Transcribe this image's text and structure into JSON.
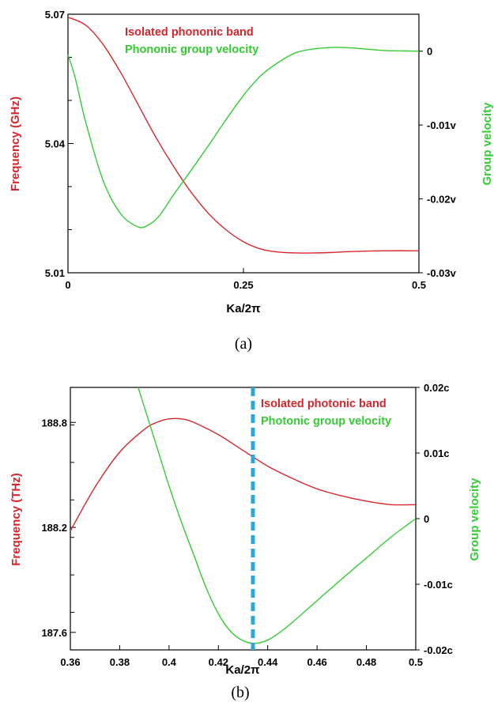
{
  "colors": {
    "red": "#d7262b",
    "green": "#33cc33",
    "marker": "#29a8e0",
    "axis": "#000000"
  },
  "chart_data": [
    {
      "type": "line",
      "caption": "(a)",
      "xlabel": "Ka/2π",
      "ylabel": "Frequency (GHz)",
      "y2label": "Group velocity",
      "xlim": [
        0,
        0.5
      ],
      "ylim": [
        5.01,
        5.07
      ],
      "y2lim": [
        -0.03,
        0.005
      ],
      "xticks": [
        0,
        0.25,
        0.5
      ],
      "xtick_labels": [
        "0",
        "0.25",
        "0.5"
      ],
      "yticks": [
        5.01,
        5.04,
        5.07
      ],
      "ytick_labels": [
        "5.01",
        "5.04",
        "5.07"
      ],
      "y2ticks": [
        0,
        -0.01,
        -0.02,
        -0.03
      ],
      "y2tick_labels": [
        "0",
        "-0.01v",
        "-0.02v",
        "-0.03v"
      ],
      "series": [
        {
          "name": "Isolated phononic band",
          "axis": "left",
          "color": "#d7262b",
          "x": [
            0,
            0.025,
            0.05,
            0.075,
            0.1,
            0.125,
            0.15,
            0.175,
            0.2,
            0.225,
            0.25,
            0.275,
            0.3,
            0.325,
            0.35,
            0.375,
            0.4,
            0.45,
            0.5
          ],
          "y": [
            5.0693,
            5.0675,
            5.063,
            5.0565,
            5.049,
            5.0415,
            5.0348,
            5.0288,
            5.0238,
            5.02,
            5.0172,
            5.0155,
            5.0148,
            5.0146,
            5.0146,
            5.0147,
            5.0149,
            5.0151,
            5.0151
          ]
        },
        {
          "name": "Phononic group velocity",
          "axis": "right",
          "color": "#33cc33",
          "x": [
            0,
            0.01,
            0.025,
            0.05,
            0.075,
            0.1,
            0.115,
            0.13,
            0.15,
            0.175,
            0.2,
            0.225,
            0.25,
            0.275,
            0.3,
            0.325,
            0.35,
            0.375,
            0.39,
            0.41,
            0.45,
            0.5
          ],
          "y": [
            -0.0005,
            -0.0035,
            -0.0095,
            -0.0175,
            -0.022,
            -0.0238,
            -0.0235,
            -0.0223,
            -0.0195,
            -0.0162,
            -0.0128,
            -0.0093,
            -0.006,
            -0.0033,
            -0.0015,
            -0.0002,
            0.0003,
            0.0005,
            0.0005,
            0.0004,
            0.0001,
            0.0
          ]
        }
      ]
    },
    {
      "type": "line",
      "caption": "(b)",
      "xlabel": "Ka/2π",
      "ylabel": "Frequency (THz)",
      "y2label": "Group velocity",
      "xlim": [
        0.36,
        0.5
      ],
      "ylim": [
        187.5,
        189.0
      ],
      "y2lim": [
        -0.02,
        0.02
      ],
      "xticks": [
        0.36,
        0.38,
        0.4,
        0.42,
        0.44,
        0.46,
        0.48,
        0.5
      ],
      "xtick_labels": [
        "0.36",
        "0.38",
        "0.4",
        "0.42",
        "0.44",
        "0.46",
        "0.48",
        "0.5"
      ],
      "yticks": [
        188.8,
        188.2,
        187.6
      ],
      "ytick_labels": [
        "188.8",
        "188.2",
        "187.6"
      ],
      "y2ticks": [
        0.02,
        0.01,
        0,
        -0.01,
        -0.02
      ],
      "y2tick_labels": [
        "0.02c",
        "0.01c",
        "0",
        "-0.01c",
        "-0.02c"
      ],
      "marker_x": 0.434,
      "series": [
        {
          "name": "Isolated photonic band",
          "axis": "left",
          "color": "#d7262b",
          "x": [
            0.36,
            0.37,
            0.38,
            0.39,
            0.395,
            0.4,
            0.405,
            0.41,
            0.42,
            0.43,
            0.44,
            0.45,
            0.46,
            0.47,
            0.48,
            0.49,
            0.5
          ],
          "y": [
            188.18,
            188.43,
            188.63,
            188.76,
            188.8,
            188.82,
            188.82,
            188.8,
            188.73,
            188.64,
            188.55,
            188.48,
            188.42,
            188.38,
            188.35,
            188.33,
            188.33
          ]
        },
        {
          "name": "Photonic group velocity",
          "axis": "right",
          "color": "#33cc33",
          "x": [
            0.3875,
            0.39,
            0.395,
            0.4,
            0.405,
            0.41,
            0.415,
            0.42,
            0.425,
            0.43,
            0.435,
            0.44,
            0.445,
            0.45,
            0.46,
            0.47,
            0.48,
            0.49,
            0.5
          ],
          "y": [
            0.02,
            0.017,
            0.011,
            0.005,
            -0.0005,
            -0.0055,
            -0.0105,
            -0.0145,
            -0.0172,
            -0.0186,
            -0.019,
            -0.0185,
            -0.0173,
            -0.0158,
            -0.0125,
            -0.0092,
            -0.006,
            -0.0028,
            0.0
          ]
        }
      ]
    }
  ]
}
